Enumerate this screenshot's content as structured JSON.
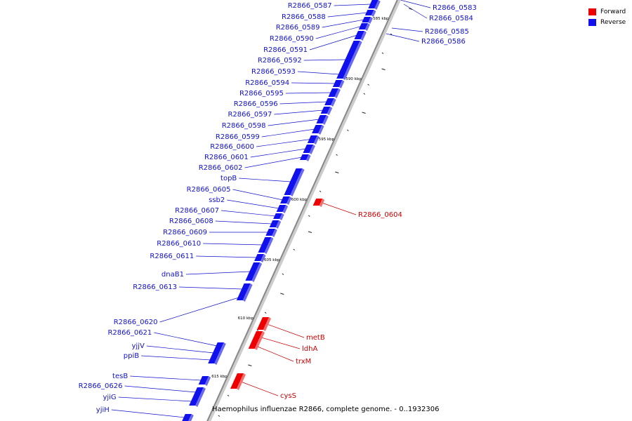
{
  "caption": "Haemophilus influenzae R2866, complete genome. - 0..1932306",
  "colors": {
    "forward": "#ee0000",
    "reverse": "#1111ee",
    "axis": "#888888",
    "forward_label": "#cc0000",
    "reverse_label": "#1111cc"
  },
  "legend": [
    {
      "label": "Forward",
      "color": "#ee0000"
    },
    {
      "label": "Reverse",
      "color": "#1111ee"
    }
  ],
  "scale_labels": [
    "585 kbp",
    "590 kbp",
    "595 kbp",
    "600 kbp",
    "605 kbp",
    "610 kbp",
    "615 kbp"
  ],
  "reverse_genes": [
    "R2866_0587",
    "R2866_0588",
    "R2866_0589",
    "R2866_0590",
    "R2866_0591",
    "R2866_0592",
    "R2866_0593",
    "R2866_0594",
    "R2866_0595",
    "R2866_0596",
    "R2866_0597",
    "R2866_0598",
    "R2866_0599",
    "R2866_0600",
    "R2866_0601",
    "R2866_0602",
    "topB",
    "R2866_0605",
    "ssb2",
    "R2866_0607",
    "R2866_0608",
    "R2866_0609",
    "R2866_0610",
    "R2866_0611",
    "dnaB1",
    "R2866_0613",
    "R2866_0620",
    "R2866_0621",
    "yjjV",
    "ppiB",
    "tesB",
    "R2866_0626",
    "yjiG",
    "yjiH"
  ],
  "reverse_genes_right": [
    "R2866_0583",
    "R2866_0584",
    "R2866_0585",
    "R2866_0586"
  ],
  "forward_genes": [
    "R2866_0604",
    "metB",
    "ldhA",
    "trxM",
    "cysS"
  ]
}
